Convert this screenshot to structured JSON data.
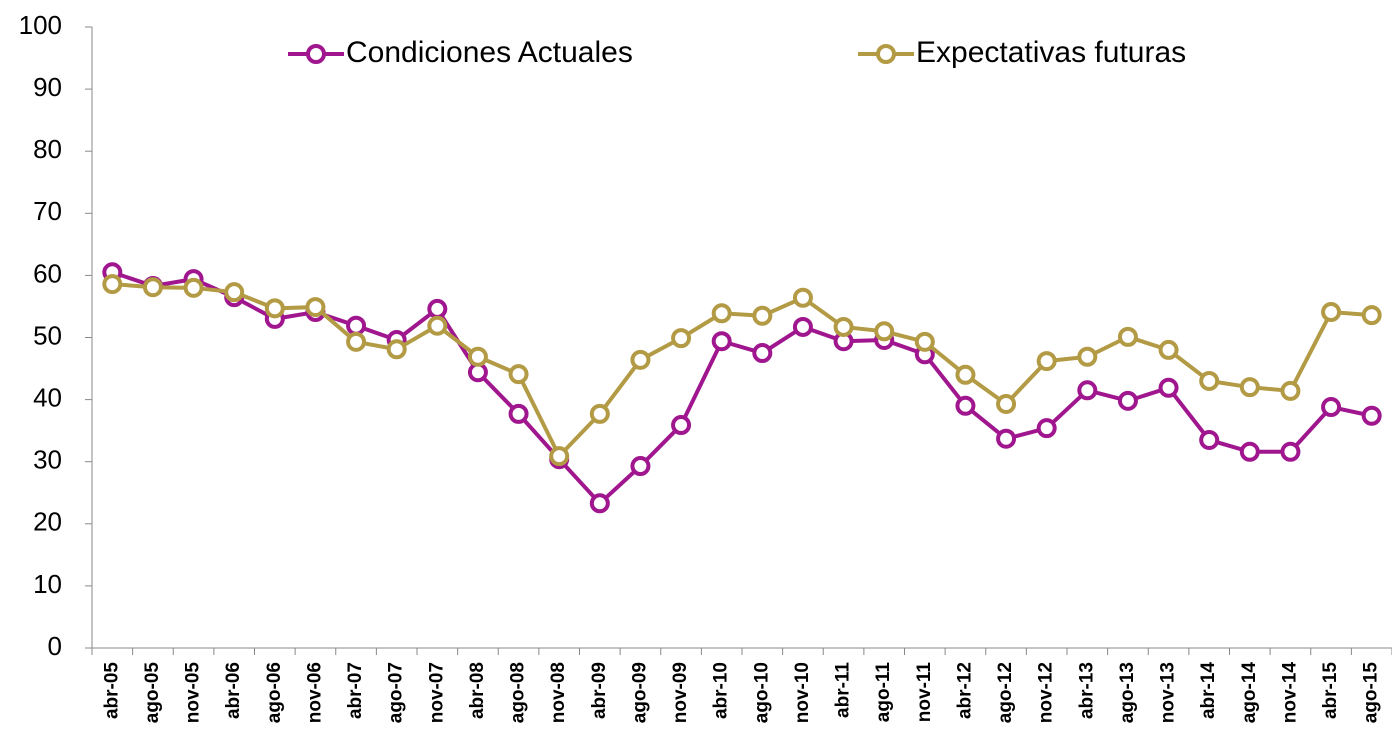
{
  "chart_data": {
    "type": "line",
    "categories": [
      "abr-05",
      "ago-05",
      "nov-05",
      "abr-06",
      "ago-06",
      "nov-06",
      "abr-07",
      "ago-07",
      "nov-07",
      "abr-08",
      "ago-08",
      "nov-08",
      "abr-09",
      "ago-09",
      "nov-09",
      "abr-10",
      "ago-10",
      "nov-10",
      "abr-11",
      "ago-11",
      "nov-11",
      "abr-12",
      "ago-12",
      "nov-12",
      "abr-13",
      "ago-13",
      "nov-13",
      "abr-14",
      "ago-14",
      "nov-14",
      "abr-15",
      "ago-15"
    ],
    "series": [
      {
        "name": "Condiciones Actuales",
        "color": "#a0168e",
        "values": [
          60.5,
          58.3,
          59.4,
          56.5,
          53,
          54.1,
          51.9,
          49.6,
          54.6,
          44.4,
          37.7,
          30.4,
          23.3,
          29.3,
          35.9,
          49.4,
          47.5,
          51.7,
          49.4,
          49.6,
          47.3,
          39,
          33.7,
          35.4,
          41.5,
          39.8,
          41.9,
          33.5,
          31.6,
          31.6,
          38.8,
          37.4
        ]
      },
      {
        "name": "Expectativas futuras",
        "color": "#b39a44",
        "values": [
          58.6,
          58.1,
          58,
          57.3,
          54.7,
          54.9,
          49.3,
          48.1,
          51.9,
          46.9,
          44.1,
          30.9,
          37.7,
          46.4,
          49.9,
          53.9,
          53.5,
          56.4,
          51.7,
          51,
          49.3,
          44,
          39.3,
          46.2,
          46.9,
          50.1,
          48,
          43,
          42,
          41.4,
          54.1,
          53.6
        ]
      }
    ],
    "ylim": [
      0,
      100
    ],
    "yticks": [
      0,
      10,
      20,
      30,
      40,
      50,
      60,
      70,
      80,
      90,
      100
    ],
    "grid": false
  }
}
